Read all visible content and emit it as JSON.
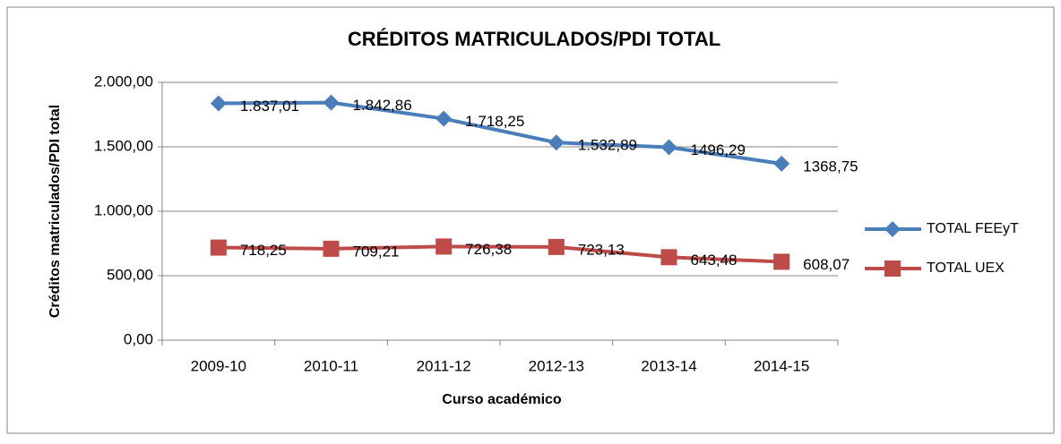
{
  "chart_data": {
    "type": "line",
    "title": "CRÉDITOS MATRICULADOS/PDI TOTAL",
    "x_label": "Curso académico",
    "y_label": "Créditos matriculados/PDI total",
    "categories": [
      "2009-10",
      "2010-11",
      "2011-12",
      "2012-13",
      "2013-14",
      "2014-15"
    ],
    "series": [
      {
        "name": "TOTAL FEEyT",
        "color": "#4a7ebb",
        "marker": "diamond",
        "values": [
          1837.01,
          1842.86,
          1718.25,
          1532.89,
          1496.29,
          1368.75
        ],
        "value_labels": [
          "1.837,01",
          "1.842,86",
          "1.718,25",
          "1.532,89",
          "1496,29",
          "1368,75"
        ]
      },
      {
        "name": "TOTAL UEX",
        "color": "#be4b48",
        "marker": "square",
        "values": [
          718.25,
          709.21,
          726.38,
          723.13,
          643.48,
          608.07
        ],
        "value_labels": [
          "718,25",
          "709,21",
          "726,38",
          "723,13",
          "643,48",
          "608,07"
        ]
      }
    ],
    "ylim": [
      0,
      2000
    ],
    "yticks": [
      {
        "value": 0,
        "label": "0,00"
      },
      {
        "value": 500,
        "label": "500,00"
      },
      {
        "value": 1000,
        "label": "1.000,00"
      },
      {
        "value": 1500,
        "label": "1.500,00"
      },
      {
        "value": 2000,
        "label": "2.000,00"
      }
    ],
    "grid": true,
    "legend": "right"
  }
}
